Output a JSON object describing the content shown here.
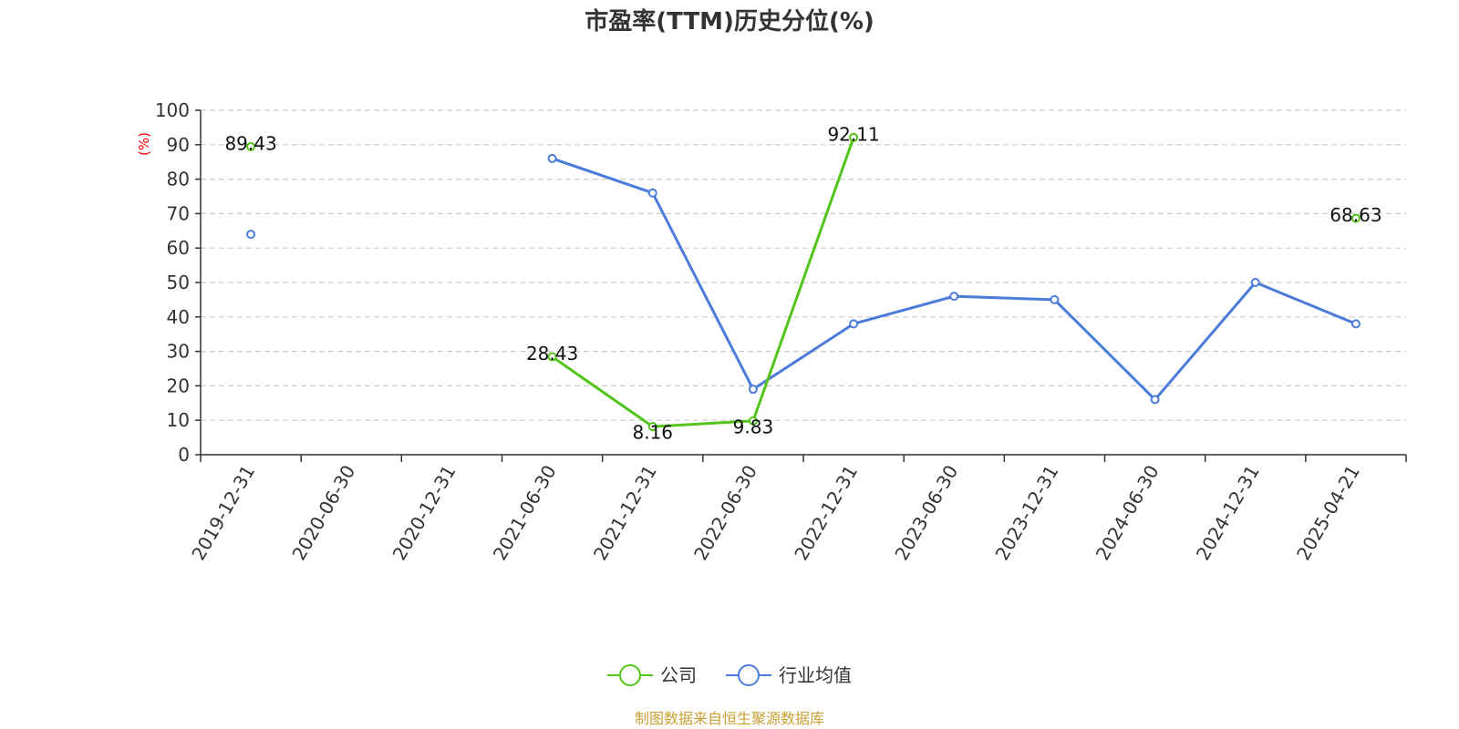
{
  "colors": {
    "company": "#52c41a",
    "industry": "#4b7bdb",
    "grid": "#cccccc",
    "axis": "#333333",
    "unit": "#ff0000",
    "source": "#c8a034"
  },
  "source_text": "制图数据来自恒生聚源数据库",
  "chart_data": {
    "type": "line",
    "title": "市盈率(TTM)历史分位(%)",
    "ylabel": "(%)",
    "ylim": [
      0,
      100
    ],
    "yticks": [
      0,
      10,
      20,
      30,
      40,
      50,
      60,
      70,
      80,
      90,
      100
    ],
    "grid": true,
    "legend_position": "bottom-center",
    "categories": [
      "2019-12-31",
      "2020-06-30",
      "2020-12-31",
      "2021-06-30",
      "2021-12-31",
      "2022-06-30",
      "2022-12-31",
      "2023-06-30",
      "2023-12-31",
      "2024-06-30",
      "2024-12-31",
      "2025-04-21"
    ],
    "series": [
      {
        "name": "公司",
        "color_key": "company",
        "values": [
          89.43,
          null,
          null,
          28.43,
          8.16,
          9.83,
          92.11,
          null,
          null,
          null,
          null,
          68.63
        ],
        "labels": [
          "89.43",
          "",
          "",
          "28.43",
          "8.16",
          "9.83",
          "92.11",
          "",
          "",
          "",
          "",
          "68.63"
        ]
      },
      {
        "name": "行业均值",
        "color_key": "industry",
        "values": [
          64,
          null,
          null,
          86,
          76,
          19,
          38,
          46,
          45,
          16,
          50,
          38
        ],
        "labels": []
      }
    ]
  }
}
